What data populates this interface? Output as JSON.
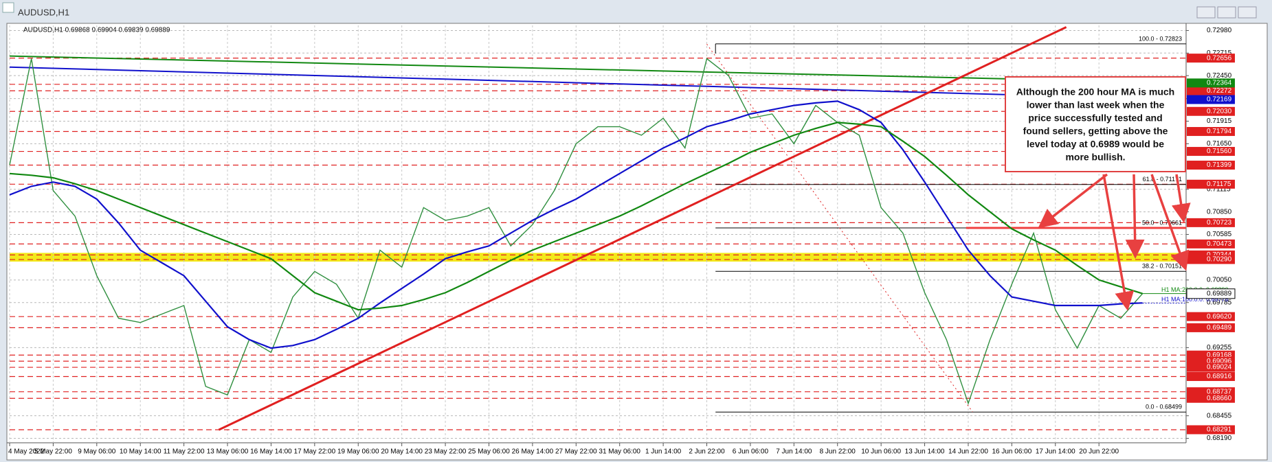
{
  "chart_data": {
    "type": "line",
    "window_title": "AUDUSD,H1",
    "header": "AUDUSD,H1  0.69868 0.69904 0.69839 0.69889",
    "categories": [
      "4 May 2022",
      null,
      "5 May 22:00",
      null,
      "9 May 06:00",
      null,
      "10 May 14:00",
      null,
      "11 May 22:00",
      null,
      "13 May 06:00",
      null,
      "16 May 14:00",
      null,
      "17 May 22:00",
      null,
      "19 May 06:00",
      null,
      "20 May 14:00",
      null,
      "23 May 22:00",
      null,
      "25 May 06:00",
      null,
      "26 May 14:00",
      null,
      "27 May 22:00",
      null,
      "31 May 06:00",
      null,
      "1 Jun 14:00",
      null,
      "2 Jun 22:00",
      null,
      "6 Jun 06:00",
      null,
      "7 Jun 14:00",
      null,
      "8 Jun 22:00",
      null,
      "10 Jun 06:00",
      null,
      "13 Jun 14:00",
      null,
      "14 Jun 22:00",
      null,
      "16 Jun 06:00",
      null,
      "17 Jun 14:00",
      null,
      "20 Jun 22:00",
      null,
      null,
      null
    ],
    "series": [
      {
        "color": "#2f8f3f",
        "values": [
          0.714,
          0.7265,
          0.711,
          0.708,
          0.701,
          0.696,
          0.6955,
          0.6965,
          0.6975,
          0.688,
          0.687,
          0.6935,
          0.692,
          0.6985,
          0.7015,
          0.7,
          0.696,
          0.704,
          0.702,
          0.709,
          0.7075,
          0.708,
          0.709,
          0.7045,
          0.707,
          0.711,
          0.7165,
          0.7185,
          0.7185,
          0.7175,
          0.7195,
          0.716,
          0.7265,
          0.7245,
          0.7195,
          0.72,
          0.7165,
          0.721,
          0.719,
          0.7175,
          0.709,
          0.706,
          0.699,
          0.6935,
          0.686,
          0.6935,
          0.7,
          0.706,
          0.697,
          0.6925,
          0.6975,
          0.696,
          0.6989,
          null
        ]
      },
      {
        "color": "#1010cc",
        "values": [
          0.7105,
          0.7115,
          0.712,
          0.7115,
          0.71,
          0.7072,
          0.704,
          0.7025,
          0.701,
          0.698,
          0.695,
          0.6935,
          0.6925,
          0.6928,
          0.6935,
          0.6947,
          0.696,
          0.6978,
          0.6995,
          0.7012,
          0.703,
          0.7038,
          0.7045,
          0.706,
          0.7075,
          0.7088,
          0.71,
          0.7115,
          0.713,
          0.7145,
          0.716,
          0.7172,
          0.7185,
          0.7192,
          0.72,
          0.7205,
          0.721,
          0.7213,
          0.7215,
          0.7205,
          0.719,
          0.7158,
          0.712,
          0.708,
          0.704,
          0.701,
          0.6985,
          0.698,
          0.6975,
          0.6975,
          0.6975,
          0.6977,
          0.6978,
          null
        ]
      },
      {
        "color": "#118811",
        "values": [
          0.713,
          0.7128,
          0.7125,
          0.7118,
          0.711,
          0.71,
          0.709,
          0.708,
          0.707,
          0.706,
          0.705,
          0.704,
          0.703,
          0.701,
          0.699,
          0.698,
          0.697,
          0.6972,
          0.6975,
          0.6982,
          0.699,
          0.7002,
          0.7015,
          0.7028,
          0.704,
          0.705,
          0.706,
          0.707,
          0.708,
          0.7092,
          0.7105,
          0.7118,
          0.713,
          0.7142,
          0.7155,
          0.7165,
          0.7175,
          0.7183,
          0.719,
          0.7188,
          0.7185,
          0.7168,
          0.715,
          0.7128,
          0.7105,
          0.7085,
          0.7065,
          0.7052,
          0.704,
          0.7022,
          0.7005,
          0.6997,
          0.6989,
          null
        ]
      }
    ],
    "ylim": [
      0.6817,
      0.7304
    ],
    "yticks": [
      {
        "value": 0.7298,
        "label": "0.72980"
      },
      0.72715,
      {
        "value": 0.7245,
        "label": "0.72450"
      },
      {
        "value": 0.7218,
        "label": "0.72180"
      },
      0.71915,
      {
        "value": 0.7165,
        "label": "0.71650"
      },
      0.71115,
      {
        "value": 0.7085,
        "label": "0.70850"
      },
      0.70585,
      {
        "value": 0.7005,
        "label": "0.70050"
      },
      0.69785,
      0.69255,
      0.68455,
      {
        "value": 0.6819,
        "label": "0.68190"
      }
    ],
    "grid": true,
    "level_color": "#e02020",
    "levels": [
      0.72656,
      0.72348,
      0.72272,
      {
        "value": 0.7203,
        "label": "0.72030"
      },
      0.71794,
      {
        "value": 0.7156,
        "label": "0.71560"
      },
      0.71399,
      0.71175,
      0.70723,
      0.70473,
      0.70344,
      {
        "value": 0.7029,
        "label": "0.70290"
      },
      {
        "value": 0.6962,
        "label": "0.69620"
      },
      0.69489,
      0.69168,
      0.69096,
      0.69024,
      0.68916,
      0.68737,
      {
        "value": 0.6866,
        "label": "0.68660"
      },
      0.68291
    ],
    "highlight_band": {
      "color": "#f2e600",
      "range": [
        0.7029,
        0.70344
      ]
    },
    "fib_levels": [
      {
        "label": "100.0 - 0.72823",
        "value": 0.72823
      },
      {
        "label": "61.8 - 0.71171",
        "value": 0.71171
      },
      {
        "label": "50.0 - 0.70661",
        "value": 0.70661
      },
      {
        "label": "38.2 - 0.70151",
        "value": 0.70151
      },
      {
        "label": "0.0 - 0.68499",
        "value": 0.68499
      }
    ],
    "resistance_line": {
      "color": "#f04040",
      "value": 0.70661,
      "from": 43.9
    },
    "trendlines": [
      {
        "color": "#e02020",
        "from": [
          9.6,
          0.6829
        ],
        "to": [
          48.5,
          0.7302
        ],
        "dashed": false
      },
      {
        "color": "#e02020",
        "from": [
          32,
          0.7282
        ],
        "to": [
          44.2,
          0.685
        ],
        "dashed": true
      }
    ],
    "long_ma": [
      {
        "color": "#118811",
        "start": 0.7268,
        "end": 0.72364,
        "label": "200:0:0: 0.72364"
      },
      {
        "color": "#1010cc",
        "start": 0.7255,
        "end": 0.72169,
        "label": "100:0:0: 0.72169"
      }
    ],
    "ma_labels": [
      {
        "color": "#118811",
        "label": "H1 MA:200:0:0: 0.69890",
        "value": 0.6989
      },
      {
        "color": "#1010cc",
        "label": "H1 MA:100:0:0: 0.69778",
        "value": 0.69778
      }
    ],
    "current_price": 0.69889,
    "annotation": [
      "Although the 200 hour MA is much",
      "lower than last week when the",
      "price successfully tested and",
      "found sellers, getting above the",
      "level today at  0.6989  would be",
      "more bullish."
    ]
  }
}
